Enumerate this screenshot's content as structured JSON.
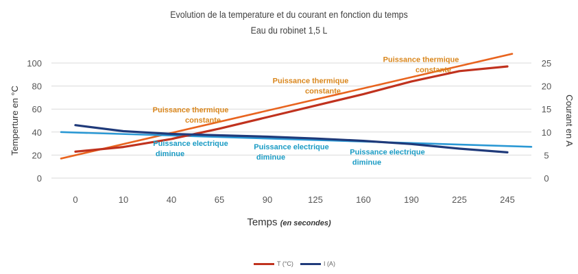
{
  "chart_data": {
    "type": "line",
    "title": "Evolution de la temperature et du courant en fonction du temps",
    "subtitle": "Eau du robinet 1,5 L",
    "xlabel": "Temps",
    "xlabel_unit": "(en secondes)",
    "ylabel": "Temperture en °C",
    "y2label": "Courant en A",
    "categories": [
      "0",
      "10",
      "40",
      "65",
      "90",
      "125",
      "160",
      "190",
      "225",
      "245"
    ],
    "ylim": [
      0,
      100
    ],
    "yticks": [
      0,
      20,
      40,
      60,
      80,
      100
    ],
    "y2lim": [
      0,
      25
    ],
    "y2ticks": [
      0,
      5,
      10,
      15,
      20,
      25
    ],
    "grid": true,
    "legend_position": "bottom",
    "series": [
      {
        "name": "T (°C)",
        "axis": "left",
        "color": "#c0321e",
        "values": [
          23,
          27,
          34,
          43,
          53,
          63,
          73,
          84,
          93,
          97
        ]
      },
      {
        "name": "I (A)",
        "axis": "right",
        "color": "#1f3a7a",
        "values": [
          11.5,
          10.2,
          9.6,
          9.3,
          9.0,
          8.6,
          8.1,
          7.4,
          6.4,
          5.6
        ]
      }
    ],
    "trendlines": [
      {
        "of": "T (°C)",
        "axis": "left",
        "color": "#e8641f",
        "from": [
          -0.3,
          17
        ],
        "to": [
          9.1,
          108
        ]
      },
      {
        "of": "I (A)",
        "axis": "right",
        "color": "#2a98d4",
        "from": [
          -0.3,
          10.0
        ],
        "to": [
          9.5,
          6.8
        ]
      }
    ],
    "annotations": [
      {
        "lines": [
          "Puissance thermique",
          "constante"
        ],
        "style": "orange",
        "x": 2.4,
        "y": 57
      },
      {
        "lines": [
          "Puissance thermique",
          "constante"
        ],
        "style": "orange",
        "x": 4.9,
        "y": 82.5
      },
      {
        "lines": [
          "Puissance thermique",
          "constante"
        ],
        "style": "orange",
        "x": 7.2,
        "y": 101
      },
      {
        "lines": [
          "Puissance electrique",
          "diminue"
        ],
        "style": "blue",
        "x": 2.4,
        "y": 28
      },
      {
        "lines": [
          "Puissance electrique",
          "diminue"
        ],
        "style": "blue",
        "x": 4.5,
        "y": 25
      },
      {
        "lines": [
          "Puissance electrique",
          "diminue"
        ],
        "style": "blue",
        "x": 6.5,
        "y": 20.5
      }
    ]
  }
}
